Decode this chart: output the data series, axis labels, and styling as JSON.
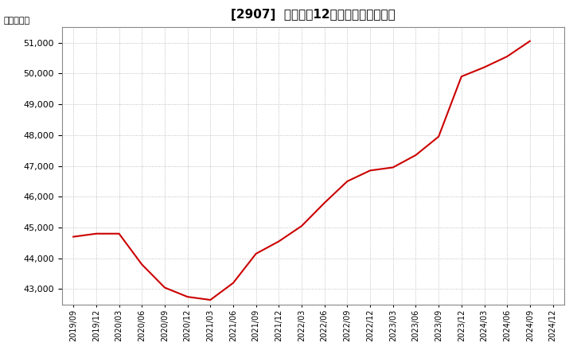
{
  "title": "[2907]  売上高の12か月移動合計の推移",
  "ylabel": "（百万円）",
  "line_color": "#cc0000",
  "background_color": "#ffffff",
  "grid_color": "#b0b0b0",
  "dates": [
    "2019/09",
    "2019/12",
    "2020/03",
    "2020/06",
    "2020/09",
    "2020/12",
    "2021/03",
    "2021/06",
    "2021/09",
    "2021/12",
    "2022/03",
    "2022/06",
    "2022/09",
    "2022/12",
    "2023/03",
    "2023/06",
    "2023/09",
    "2023/12",
    "2024/03",
    "2024/06",
    "2024/09",
    "2024/12"
  ],
  "values": [
    44700,
    44800,
    44800,
    43800,
    43050,
    42750,
    42650,
    43200,
    44150,
    44550,
    45050,
    45800,
    46500,
    46850,
    46950,
    47350,
    47950,
    49900,
    50200,
    50550,
    51050,
    null
  ],
  "yticks": [
    43000,
    44000,
    45000,
    46000,
    47000,
    48000,
    49000,
    50000,
    51000
  ],
  "ylim": [
    42500,
    51500
  ],
  "xtick_labels": [
    "2019/09",
    "2019/12",
    "2020/03",
    "2020/06",
    "2020/09",
    "2020/12",
    "2021/03",
    "2021/06",
    "2021/09",
    "2021/12",
    "2022/03",
    "2022/06",
    "2022/09",
    "2022/12",
    "2023/03",
    "2023/06",
    "2023/09",
    "2023/12",
    "2024/03",
    "2024/06",
    "2024/09",
    "2024/12"
  ],
  "title_fontsize": 11,
  "tick_fontsize": 8,
  "ylabel_fontsize": 8
}
